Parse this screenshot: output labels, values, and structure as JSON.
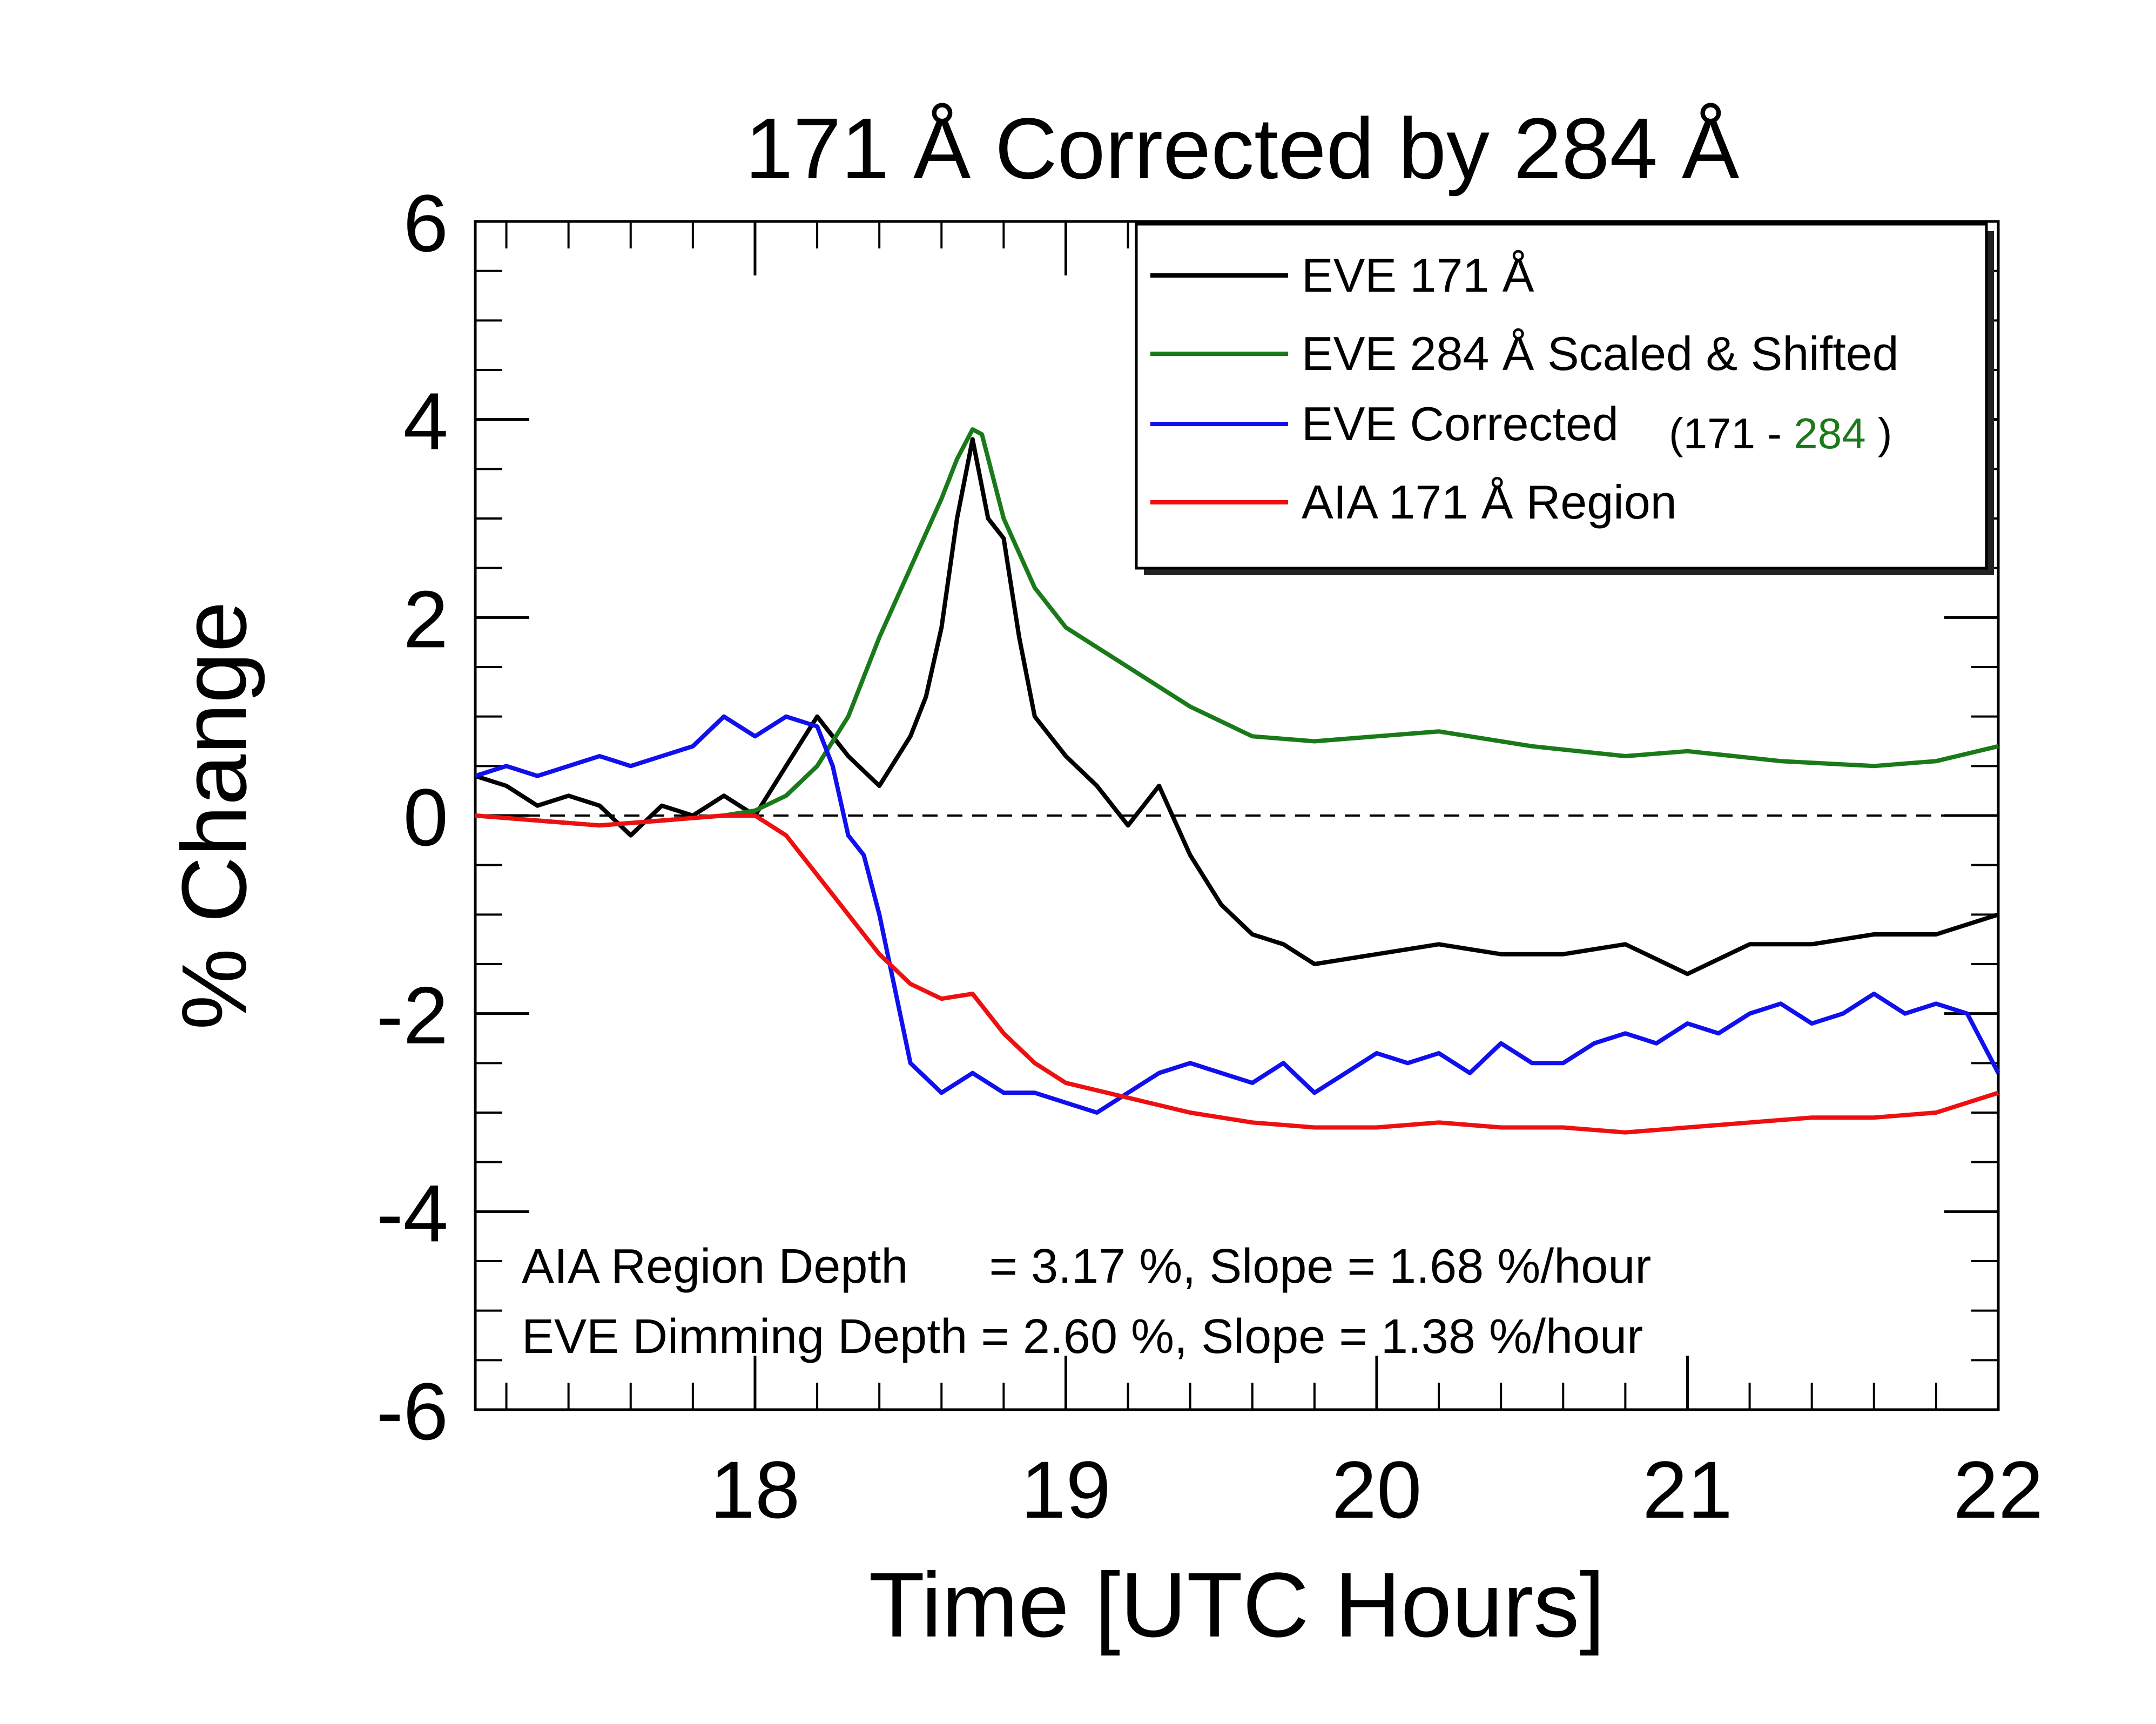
{
  "chart_data": {
    "type": "line",
    "title": "171 Å Corrected by 284 Å",
    "xlabel": "Time [UTC Hours]",
    "ylabel": "% Change",
    "xlim": [
      17.1,
      22.0
    ],
    "ylim": [
      -6,
      6
    ],
    "xticks": [
      {
        "value": 18,
        "label": "18"
      },
      {
        "value": 19,
        "label": "19"
      },
      {
        "value": 20,
        "label": "20"
      },
      {
        "value": 21,
        "label": "21"
      },
      {
        "value": 22,
        "label": "22"
      }
    ],
    "yticks": [
      {
        "value": 6,
        "label": "6"
      },
      {
        "value": 4,
        "label": "4"
      },
      {
        "value": 2,
        "label": "2"
      },
      {
        "value": 0,
        "label": "0"
      },
      {
        "value": -2,
        "label": "-2"
      },
      {
        "value": -4,
        "label": "-4"
      },
      {
        "value": -6,
        "label": "-6"
      }
    ],
    "zero_line": {
      "y": 0,
      "style": "dashed"
    },
    "legend": {
      "position": "top-right",
      "entries": [
        {
          "label": "EVE 171 Å",
          "color": "#000000"
        },
        {
          "label": "EVE 284 Å Scaled & Shifted",
          "color": "#1a7a1a"
        },
        {
          "label": "EVE Corrected",
          "color": "#1010ee",
          "suffix_open": "(171 - ",
          "suffix_green": "284",
          "suffix_close": " )"
        },
        {
          "label": "AIA 171 Å Region",
          "color": "#ee1010"
        }
      ]
    },
    "annotations": [
      "AIA Region Depth      = 3.17 %, Slope = 1.68 %/hour",
      "EVE Dimming Depth = 2.60 %, Slope = 1.38 %/hour"
    ],
    "series": [
      {
        "name": "EVE 171 Å",
        "color": "#000000",
        "x": [
          17.1,
          17.2,
          17.3,
          17.4,
          17.5,
          17.6,
          17.7,
          17.8,
          17.9,
          18.0,
          18.1,
          18.2,
          18.3,
          18.4,
          18.5,
          18.55,
          18.6,
          18.65,
          18.7,
          18.75,
          18.8,
          18.85,
          18.9,
          18.95,
          19.0,
          19.1,
          19.2,
          19.3,
          19.4,
          19.5,
          19.6,
          19.7,
          19.8,
          20.0,
          20.2,
          20.4,
          20.6,
          20.8,
          21.0,
          21.2,
          21.4,
          21.6,
          21.8,
          22.0
        ],
        "y": [
          0.4,
          0.3,
          0.1,
          0.2,
          0.1,
          -0.2,
          0.1,
          0.0,
          0.2,
          0.0,
          0.5,
          1.0,
          0.6,
          0.3,
          0.8,
          1.2,
          1.9,
          3.0,
          3.8,
          3.0,
          2.8,
          1.8,
          1.0,
          0.8,
          0.6,
          0.3,
          -0.1,
          0.3,
          -0.4,
          -0.9,
          -1.2,
          -1.3,
          -1.5,
          -1.4,
          -1.3,
          -1.4,
          -1.4,
          -1.3,
          -1.6,
          -1.3,
          -1.3,
          -1.2,
          -1.2,
          -1.0
        ]
      },
      {
        "name": "EVE 284 Å Scaled & Shifted",
        "color": "#1a7a1a",
        "x": [
          17.1,
          17.3,
          17.5,
          17.7,
          17.9,
          18.0,
          18.1,
          18.2,
          18.3,
          18.4,
          18.5,
          18.6,
          18.65,
          18.7,
          18.73,
          18.8,
          18.9,
          19.0,
          19.2,
          19.4,
          19.6,
          19.8,
          20.0,
          20.2,
          20.5,
          20.8,
          21.0,
          21.3,
          21.6,
          21.8,
          22.0
        ],
        "y": [
          0.0,
          -0.05,
          -0.1,
          -0.05,
          0.0,
          0.05,
          0.2,
          0.5,
          1.0,
          1.8,
          2.5,
          3.2,
          3.6,
          3.9,
          3.85,
          3.0,
          2.3,
          1.9,
          1.5,
          1.1,
          0.8,
          0.75,
          0.8,
          0.85,
          0.7,
          0.6,
          0.65,
          0.55,
          0.5,
          0.55,
          0.7
        ]
      },
      {
        "name": "EVE Corrected",
        "color": "#1010ee",
        "x": [
          17.1,
          17.2,
          17.3,
          17.4,
          17.5,
          17.6,
          17.7,
          17.8,
          17.9,
          18.0,
          18.1,
          18.2,
          18.25,
          18.3,
          18.35,
          18.4,
          18.5,
          18.6,
          18.7,
          18.8,
          18.9,
          19.0,
          19.1,
          19.2,
          19.3,
          19.4,
          19.5,
          19.6,
          19.7,
          19.8,
          19.9,
          20.0,
          20.1,
          20.2,
          20.3,
          20.4,
          20.5,
          20.6,
          20.7,
          20.8,
          20.9,
          21.0,
          21.1,
          21.2,
          21.3,
          21.4,
          21.5,
          21.6,
          21.7,
          21.8,
          21.9,
          22.0
        ],
        "y": [
          0.4,
          0.5,
          0.4,
          0.5,
          0.6,
          0.5,
          0.6,
          0.7,
          1.0,
          0.8,
          1.0,
          0.9,
          0.5,
          -0.2,
          -0.4,
          -1.0,
          -2.5,
          -2.8,
          -2.6,
          -2.8,
          -2.8,
          -2.9,
          -3.0,
          -2.8,
          -2.6,
          -2.5,
          -2.6,
          -2.7,
          -2.5,
          -2.8,
          -2.6,
          -2.4,
          -2.5,
          -2.4,
          -2.6,
          -2.3,
          -2.5,
          -2.5,
          -2.3,
          -2.2,
          -2.3,
          -2.1,
          -2.2,
          -2.0,
          -1.9,
          -2.1,
          -2.0,
          -1.8,
          -2.0,
          -1.9,
          -2.0,
          -2.6
        ]
      },
      {
        "name": "AIA 171 Å Region",
        "color": "#ee1010",
        "x": [
          17.1,
          17.3,
          17.5,
          17.7,
          17.9,
          18.0,
          18.1,
          18.2,
          18.3,
          18.4,
          18.5,
          18.6,
          18.7,
          18.8,
          18.9,
          19.0,
          19.2,
          19.4,
          19.6,
          19.8,
          20.0,
          20.2,
          20.4,
          20.6,
          20.8,
          21.0,
          21.2,
          21.4,
          21.6,
          21.8,
          22.0
        ],
        "y": [
          0.0,
          -0.05,
          -0.1,
          -0.05,
          0.0,
          0.0,
          -0.2,
          -0.6,
          -1.0,
          -1.4,
          -1.7,
          -1.85,
          -1.8,
          -2.2,
          -2.5,
          -2.7,
          -2.85,
          -3.0,
          -3.1,
          -3.15,
          -3.15,
          -3.1,
          -3.15,
          -3.15,
          -3.2,
          -3.15,
          -3.1,
          -3.05,
          -3.05,
          -3.0,
          -2.8
        ]
      }
    ]
  }
}
